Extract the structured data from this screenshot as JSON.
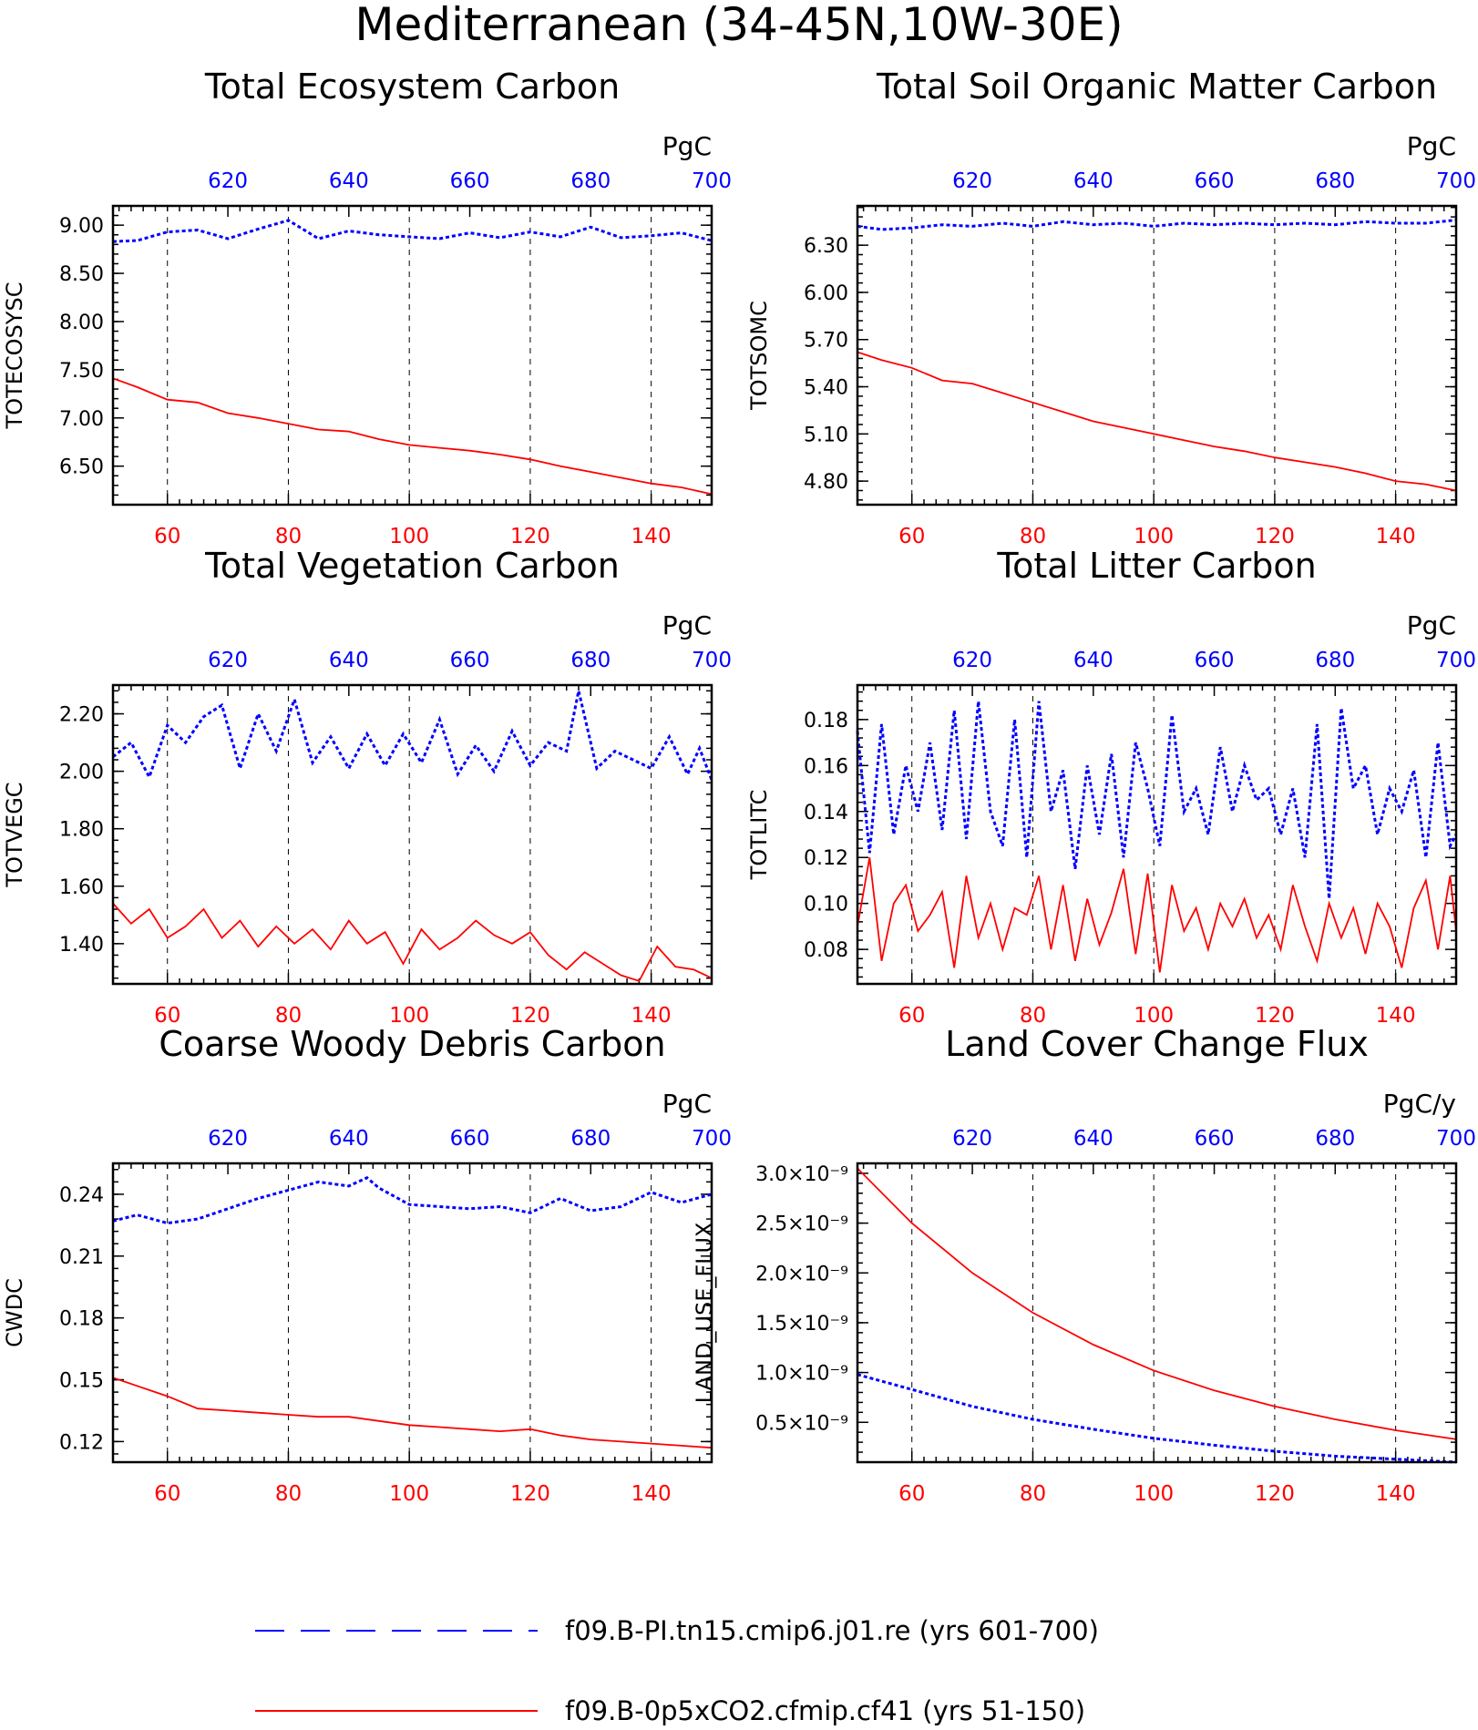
{
  "figure": {
    "title": "Mediterranean (34-45N,10W-30E)"
  },
  "legend": {
    "items": [
      {
        "label": "f09.B-PI.tn15.cmip6.j01.re (yrs 601-700)",
        "color": "#0000ff",
        "style": "dashed"
      },
      {
        "label": "f09.B-0p5xCO2.cfmip.cf41 (yrs 51-150)",
        "color": "#ff0000",
        "style": "solid"
      }
    ]
  },
  "chart_data": [
    {
      "type": "line",
      "title": "Total Ecosystem Carbon",
      "ylabel": "TOTECOSYSC",
      "units": "PgC",
      "bottom_xlim": [
        51,
        150
      ],
      "bottom_xticks": [
        60,
        80,
        100,
        120,
        140
      ],
      "top_xlim": [
        601,
        700
      ],
      "top_xticks": [
        620,
        640,
        660,
        680,
        700
      ],
      "ylim": [
        6.1,
        9.2
      ],
      "yticks": [
        9.0,
        8.5,
        8.0,
        7.5,
        7.0,
        6.5
      ],
      "ytick_labels": [
        "9.00",
        "8.50",
        "8.00",
        "7.50",
        "7.00",
        "6.50"
      ],
      "grid": "vertical-dashed",
      "series": [
        {
          "color": "#0000ff",
          "style": "dashed",
          "axis": "top",
          "x": [
            601,
            605,
            610,
            615,
            620,
            625,
            630,
            635,
            640,
            645,
            650,
            655,
            660,
            665,
            670,
            675,
            680,
            685,
            690,
            695,
            700
          ],
          "values": [
            8.83,
            8.84,
            8.93,
            8.95,
            8.86,
            8.96,
            9.05,
            8.86,
            8.94,
            8.9,
            8.88,
            8.86,
            8.92,
            8.87,
            8.93,
            8.88,
            8.98,
            8.87,
            8.89,
            8.92,
            8.84
          ]
        },
        {
          "color": "#ff0000",
          "style": "solid",
          "axis": "bottom",
          "x": [
            51,
            55,
            60,
            65,
            70,
            75,
            80,
            85,
            90,
            95,
            100,
            105,
            110,
            115,
            120,
            125,
            130,
            135,
            140,
            145,
            150
          ],
          "values": [
            7.41,
            7.32,
            7.19,
            7.16,
            7.05,
            7.0,
            6.94,
            6.88,
            6.86,
            6.78,
            6.72,
            6.69,
            6.66,
            6.62,
            6.57,
            6.5,
            6.44,
            6.38,
            6.32,
            6.28,
            6.21
          ]
        }
      ]
    },
    {
      "type": "line",
      "title": "Total Soil Organic Matter Carbon",
      "ylabel": "TOTSOMC",
      "units": "PgC",
      "bottom_xlim": [
        51,
        150
      ],
      "bottom_xticks": [
        60,
        80,
        100,
        120,
        140
      ],
      "top_xlim": [
        601,
        700
      ],
      "top_xticks": [
        620,
        640,
        660,
        680,
        700
      ],
      "ylim": [
        4.65,
        6.55
      ],
      "yticks": [
        6.3,
        6.0,
        5.7,
        5.4,
        5.1,
        4.8
      ],
      "ytick_labels": [
        "6.30",
        "6.00",
        "5.70",
        "5.40",
        "5.10",
        "4.80"
      ],
      "grid": "vertical-dashed",
      "series": [
        {
          "color": "#0000ff",
          "style": "dashed",
          "axis": "top",
          "x": [
            601,
            605,
            610,
            615,
            620,
            625,
            630,
            635,
            640,
            645,
            650,
            655,
            660,
            665,
            670,
            675,
            680,
            685,
            690,
            695,
            700
          ],
          "values": [
            6.42,
            6.4,
            6.41,
            6.43,
            6.42,
            6.44,
            6.42,
            6.45,
            6.43,
            6.44,
            6.42,
            6.44,
            6.43,
            6.44,
            6.43,
            6.44,
            6.43,
            6.45,
            6.44,
            6.44,
            6.46
          ]
        },
        {
          "color": "#ff0000",
          "style": "solid",
          "axis": "bottom",
          "x": [
            51,
            55,
            60,
            65,
            70,
            75,
            80,
            85,
            90,
            95,
            100,
            105,
            110,
            115,
            120,
            125,
            130,
            135,
            140,
            145,
            150
          ],
          "values": [
            5.62,
            5.57,
            5.52,
            5.44,
            5.42,
            5.36,
            5.3,
            5.24,
            5.18,
            5.14,
            5.1,
            5.06,
            5.02,
            4.99,
            4.95,
            4.92,
            4.89,
            4.85,
            4.8,
            4.78,
            4.74
          ]
        }
      ]
    },
    {
      "type": "line",
      "title": "Total Vegetation Carbon",
      "ylabel": "TOTVEGC",
      "units": "PgC",
      "bottom_xlim": [
        51,
        150
      ],
      "bottom_xticks": [
        60,
        80,
        100,
        120,
        140
      ],
      "top_xlim": [
        601,
        700
      ],
      "top_xticks": [
        620,
        640,
        660,
        680,
        700
      ],
      "ylim": [
        1.26,
        2.3
      ],
      "yticks": [
        2.2,
        2.0,
        1.8,
        1.6,
        1.4
      ],
      "ytick_labels": [
        "2.20",
        "2.00",
        "1.80",
        "1.60",
        "1.40"
      ],
      "grid": "vertical-dashed",
      "series": [
        {
          "color": "#0000ff",
          "style": "dashed",
          "axis": "top",
          "x": [
            601,
            604,
            607,
            610,
            613,
            616,
            619,
            622,
            625,
            628,
            631,
            634,
            637,
            640,
            643,
            646,
            649,
            652,
            655,
            658,
            661,
            664,
            667,
            670,
            673,
            676,
            678,
            681,
            684,
            687,
            690,
            693,
            696,
            698,
            700
          ],
          "values": [
            2.05,
            2.1,
            1.98,
            2.16,
            2.1,
            2.19,
            2.23,
            2.01,
            2.2,
            2.07,
            2.25,
            2.03,
            2.12,
            2.01,
            2.13,
            2.02,
            2.13,
            2.03,
            2.18,
            1.99,
            2.09,
            2.0,
            2.14,
            2.02,
            2.1,
            2.07,
            2.28,
            2.01,
            2.07,
            2.04,
            2.01,
            2.12,
            1.99,
            2.08,
            1.97
          ]
        },
        {
          "color": "#ff0000",
          "style": "solid",
          "axis": "bottom",
          "x": [
            51,
            54,
            57,
            60,
            63,
            66,
            69,
            72,
            75,
            78,
            81,
            84,
            87,
            90,
            93,
            96,
            99,
            102,
            105,
            108,
            111,
            114,
            117,
            120,
            123,
            126,
            129,
            132,
            135,
            138,
            141,
            144,
            147,
            150
          ],
          "values": [
            1.54,
            1.47,
            1.52,
            1.42,
            1.46,
            1.52,
            1.42,
            1.48,
            1.39,
            1.46,
            1.4,
            1.45,
            1.38,
            1.48,
            1.4,
            1.44,
            1.33,
            1.45,
            1.38,
            1.42,
            1.48,
            1.43,
            1.4,
            1.44,
            1.36,
            1.31,
            1.37,
            1.33,
            1.29,
            1.27,
            1.39,
            1.32,
            1.31,
            1.28
          ]
        }
      ]
    },
    {
      "type": "line",
      "title": "Total Litter Carbon",
      "ylabel": "TOTLITC",
      "units": "PgC",
      "bottom_xlim": [
        51,
        150
      ],
      "bottom_xticks": [
        60,
        80,
        100,
        120,
        140
      ],
      "top_xlim": [
        601,
        700
      ],
      "top_xticks": [
        620,
        640,
        660,
        680,
        700
      ],
      "ylim": [
        0.065,
        0.195
      ],
      "yticks": [
        0.18,
        0.16,
        0.14,
        0.12,
        0.1,
        0.08
      ],
      "ytick_labels": [
        "0.18",
        "0.16",
        "0.14",
        "0.12",
        "0.10",
        "0.08"
      ],
      "grid": "vertical-dashed",
      "series": [
        {
          "color": "#0000ff",
          "style": "dashed",
          "axis": "top",
          "x": [
            601,
            603,
            605,
            607,
            609,
            611,
            613,
            615,
            617,
            619,
            621,
            623,
            625,
            627,
            629,
            631,
            633,
            635,
            637,
            639,
            641,
            643,
            645,
            647,
            649,
            651,
            653,
            655,
            657,
            659,
            661,
            663,
            665,
            667,
            669,
            671,
            673,
            675,
            677,
            679,
            681,
            683,
            685,
            687,
            689,
            691,
            693,
            695,
            697,
            699,
            700
          ],
          "values": [
            0.175,
            0.122,
            0.178,
            0.13,
            0.16,
            0.14,
            0.17,
            0.132,
            0.184,
            0.128,
            0.188,
            0.14,
            0.125,
            0.18,
            0.12,
            0.188,
            0.14,
            0.158,
            0.115,
            0.16,
            0.13,
            0.165,
            0.12,
            0.17,
            0.15,
            0.125,
            0.182,
            0.14,
            0.15,
            0.13,
            0.168,
            0.14,
            0.16,
            0.145,
            0.15,
            0.13,
            0.15,
            0.12,
            0.178,
            0.102,
            0.185,
            0.15,
            0.16,
            0.13,
            0.15,
            0.14,
            0.158,
            0.12,
            0.17,
            0.125,
            0.13
          ]
        },
        {
          "color": "#ff0000",
          "style": "solid",
          "axis": "bottom",
          "x": [
            51,
            53,
            55,
            57,
            59,
            61,
            63,
            65,
            67,
            69,
            71,
            73,
            75,
            77,
            79,
            81,
            83,
            85,
            87,
            89,
            91,
            93,
            95,
            97,
            99,
            101,
            103,
            105,
            107,
            109,
            111,
            113,
            115,
            117,
            119,
            121,
            123,
            125,
            127,
            129,
            131,
            133,
            135,
            137,
            139,
            141,
            143,
            145,
            147,
            149,
            150
          ],
          "values": [
            0.09,
            0.12,
            0.075,
            0.1,
            0.108,
            0.088,
            0.095,
            0.105,
            0.072,
            0.112,
            0.085,
            0.1,
            0.08,
            0.098,
            0.095,
            0.112,
            0.08,
            0.108,
            0.075,
            0.102,
            0.082,
            0.096,
            0.115,
            0.078,
            0.113,
            0.07,
            0.108,
            0.088,
            0.098,
            0.08,
            0.1,
            0.09,
            0.102,
            0.085,
            0.095,
            0.08,
            0.108,
            0.09,
            0.075,
            0.1,
            0.085,
            0.098,
            0.078,
            0.1,
            0.09,
            0.072,
            0.098,
            0.11,
            0.08,
            0.112,
            0.088
          ]
        }
      ]
    },
    {
      "type": "line",
      "title": "Coarse Woody Debris Carbon",
      "ylabel": "CWDC",
      "units": "PgC",
      "bottom_xlim": [
        51,
        150
      ],
      "bottom_xticks": [
        60,
        80,
        100,
        120,
        140
      ],
      "top_xlim": [
        601,
        700
      ],
      "top_xticks": [
        620,
        640,
        660,
        680,
        700
      ],
      "ylim": [
        0.11,
        0.255
      ],
      "yticks": [
        0.24,
        0.21,
        0.18,
        0.15,
        0.12
      ],
      "ytick_labels": [
        "0.24",
        "0.21",
        "0.18",
        "0.15",
        "0.12"
      ],
      "grid": "vertical-dashed",
      "series": [
        {
          "color": "#0000ff",
          "style": "dashed",
          "axis": "top",
          "x": [
            601,
            605,
            610,
            615,
            620,
            625,
            630,
            635,
            640,
            643,
            645,
            650,
            655,
            660,
            665,
            670,
            675,
            680,
            685,
            690,
            695,
            700
          ],
          "values": [
            0.227,
            0.23,
            0.226,
            0.228,
            0.233,
            0.238,
            0.242,
            0.246,
            0.244,
            0.248,
            0.243,
            0.235,
            0.234,
            0.233,
            0.234,
            0.231,
            0.238,
            0.232,
            0.234,
            0.241,
            0.236,
            0.24
          ]
        },
        {
          "color": "#ff0000",
          "style": "solid",
          "axis": "bottom",
          "x": [
            51,
            55,
            60,
            65,
            70,
            75,
            80,
            85,
            90,
            95,
            100,
            105,
            110,
            115,
            120,
            125,
            130,
            135,
            140,
            145,
            150
          ],
          "values": [
            0.151,
            0.147,
            0.142,
            0.136,
            0.135,
            0.134,
            0.133,
            0.132,
            0.132,
            0.13,
            0.128,
            0.127,
            0.126,
            0.125,
            0.126,
            0.123,
            0.121,
            0.12,
            0.119,
            0.118,
            0.117
          ]
        }
      ]
    },
    {
      "type": "line",
      "title": "Land Cover Change Flux",
      "ylabel": "LAND_USE_FLUX",
      "units": "PgC/y",
      "bottom_xlim": [
        51,
        150
      ],
      "bottom_xticks": [
        60,
        80,
        100,
        120,
        140
      ],
      "top_xlim": [
        601,
        700
      ],
      "top_xticks": [
        620,
        640,
        660,
        680,
        700
      ],
      "ylim": [
        1e-10,
        3.1e-09
      ],
      "yticks": [
        3e-09,
        2.5e-09,
        2e-09,
        1.5e-09,
        1e-09,
        5e-10
      ],
      "ytick_labels": [
        "3.0×10⁻⁹",
        "2.5×10⁻⁹",
        "2.0×10⁻⁹",
        "1.5×10⁻⁹",
        "1.0×10⁻⁹",
        "0.5×10⁻⁹"
      ],
      "grid": "vertical-dashed",
      "series": [
        {
          "color": "#0000ff",
          "style": "dashed",
          "axis": "top",
          "x": [
            601,
            610,
            620,
            630,
            640,
            650,
            660,
            670,
            680,
            690,
            700
          ],
          "values": [
            9.8e-10,
            8.3e-10,
            6.6e-10,
            5.3e-10,
            4.3e-10,
            3.4e-10,
            2.7e-10,
            2.1e-10,
            1.6e-10,
            1.3e-10,
            1e-10
          ]
        },
        {
          "color": "#ff0000",
          "style": "solid",
          "axis": "bottom",
          "x": [
            51,
            60,
            70,
            80,
            90,
            100,
            110,
            120,
            130,
            140,
            150
          ],
          "values": [
            3.05e-09,
            2.5e-09,
            2e-09,
            1.6e-09,
            1.28e-09,
            1.02e-09,
            8.2e-10,
            6.6e-10,
            5.3e-10,
            4.2e-10,
            3.3e-10
          ]
        }
      ]
    }
  ]
}
